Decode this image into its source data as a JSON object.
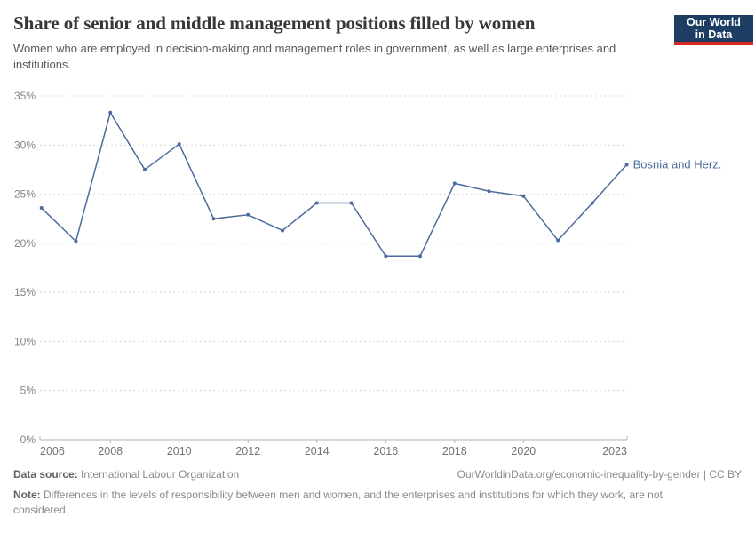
{
  "header": {
    "title": "Share of senior and middle management positions filled by women",
    "subtitle": "Women who are employed in decision-making and management roles in government, as well as large enterprises and institutions.",
    "logo": {
      "line1": "Our World",
      "line2": "in Data",
      "bg_color": "#1d3d63",
      "accent_color": "#d3291f"
    }
  },
  "chart_data": {
    "type": "line",
    "title": "Share of senior and middle management positions filled by women",
    "series": [
      {
        "name": "Bosnia and Herz.",
        "color": "#4d6b9e",
        "x": [
          2006,
          2007,
          2008,
          2009,
          2010,
          2011,
          2012,
          2013,
          2014,
          2015,
          2016,
          2017,
          2018,
          2019,
          2020,
          2021,
          2022,
          2023
        ],
        "values": [
          23.6,
          20.2,
          33.3,
          27.5,
          30.1,
          22.5,
          22.9,
          21.3,
          24.1,
          24.1,
          18.7,
          18.7,
          26.1,
          25.3,
          24.8,
          20.3,
          24.1,
          28.0
        ]
      }
    ],
    "xlabel": "",
    "ylabel": "",
    "ylim": [
      0,
      35
    ],
    "xlim": [
      2006,
      2023
    ],
    "ytick_labels": [
      "0%",
      "5%",
      "10%",
      "15%",
      "20%",
      "25%",
      "30%",
      "35%"
    ],
    "ytick_values": [
      0,
      5,
      10,
      15,
      20,
      25,
      30,
      35
    ],
    "xtick_labels": [
      "2006",
      "2008",
      "2010",
      "2012",
      "2014",
      "2016",
      "2018",
      "2020",
      "2023"
    ],
    "xtick_values": [
      2006,
      2008,
      2010,
      2012,
      2014,
      2016,
      2018,
      2020,
      2023
    ],
    "grid": "horizontal-dashed",
    "legend_position": "end-of-line-label",
    "end_label": "Bosnia and Herz.",
    "gridline_color": "#d9d9d9",
    "axis_color": "#b5b5b5",
    "tick_label_color": "#737373"
  },
  "footer": {
    "data_source_label": "Data source:",
    "data_source_value": "International Labour Organization",
    "link_text": "OurWorldinData.org/economic-inequality-by-gender | CC BY",
    "note_label": "Note:",
    "note_text": "Differences in the levels of responsibility between men and women, and the enterprises and institutions for which they work, are not considered."
  }
}
